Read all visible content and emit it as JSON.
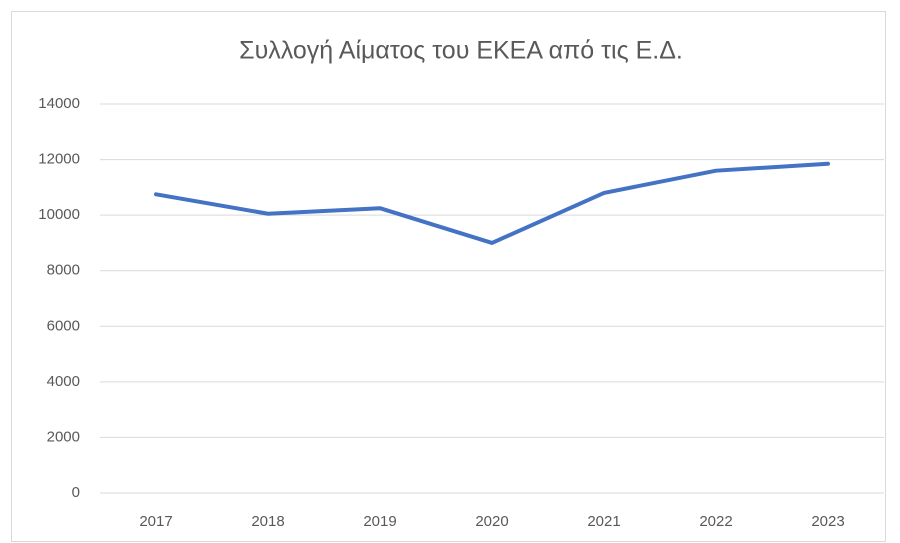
{
  "chart_data": {
    "type": "line",
    "title": "Συλλογή Αίματος του ΕΚΕΑ από τις Ε.Δ.",
    "categories": [
      "2017",
      "2018",
      "2019",
      "2020",
      "2021",
      "2022",
      "2023"
    ],
    "values": [
      10750,
      10050,
      10250,
      9000,
      10800,
      11600,
      11850
    ],
    "color": "#4472c4",
    "ylim": [
      0,
      14000
    ],
    "yticks": [
      0,
      2000,
      4000,
      6000,
      8000,
      10000,
      12000,
      14000
    ],
    "grid": true
  }
}
